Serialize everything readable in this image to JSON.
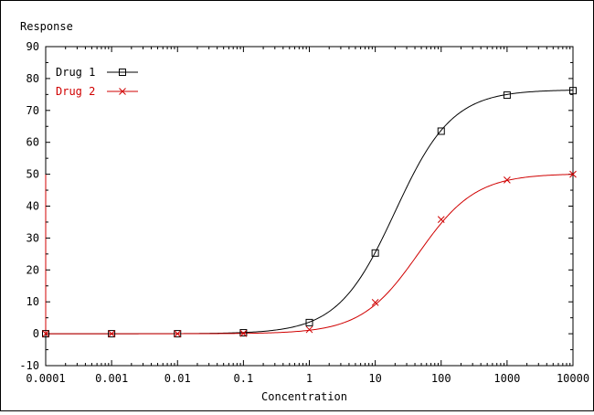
{
  "chart_data": {
    "type": "line",
    "title": "",
    "ylabel": "Response",
    "xlabel": "Concentration",
    "xscale": "log",
    "xlim": [
      0.0001,
      10000
    ],
    "ylim": [
      -10,
      90
    ],
    "x_ticks": [
      0.0001,
      0.001,
      0.01,
      0.1,
      1,
      10,
      100,
      1000,
      10000
    ],
    "x_tick_labels": [
      "0.0001",
      "0.001",
      "0.01",
      "0.1",
      "1",
      "10",
      "100",
      "1000",
      "10000"
    ],
    "y_ticks": [
      -10,
      0,
      10,
      20,
      30,
      40,
      50,
      60,
      70,
      80,
      90
    ],
    "y_tick_labels": [
      "-10",
      "0",
      "10",
      "20",
      "30",
      "40",
      "50",
      "60",
      "70",
      "80",
      "90"
    ],
    "grid": false,
    "legend_position": "top-left",
    "x": [
      0.0001,
      0.001,
      0.01,
      0.1,
      1,
      10,
      100,
      1000,
      10000
    ],
    "series": [
      {
        "name": "Drug 1",
        "color": "#000000",
        "marker": "square",
        "values": [
          0,
          0,
          0,
          0.3,
          3.5,
          25.3,
          63.5,
          74.8,
          76.2
        ],
        "curve": {
          "bottom": 0,
          "top": 76.5,
          "ec50": 20,
          "hill": 1.0
        }
      },
      {
        "name": "Drug 2",
        "color": "#d00000",
        "marker": "x",
        "values": [
          0,
          0,
          0,
          0.1,
          1.3,
          9.8,
          35.8,
          48.2,
          50.0
        ],
        "curve": {
          "bottom": 0,
          "top": 50.2,
          "ec50": 45,
          "hill": 1.0
        }
      }
    ]
  }
}
